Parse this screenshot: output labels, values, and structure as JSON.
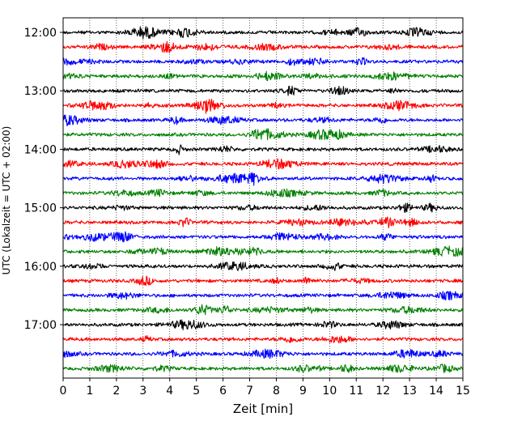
{
  "chart_data": {
    "type": "line",
    "title": "",
    "xlabel": "Zeit  [min]",
    "ylabel": "UTC (Lokalzeit = UTC + 02:00)",
    "xlim": [
      0,
      15
    ],
    "x_ticks": [
      0,
      1,
      2,
      3,
      4,
      5,
      6,
      7,
      8,
      9,
      10,
      11,
      12,
      13,
      14,
      15
    ],
    "y_ticks": [
      "12:00",
      "13:00",
      "14:00",
      "15:00",
      "16:00",
      "17:00"
    ],
    "grid": "vertical dotted",
    "minutes_per_trace": 15,
    "trace_start": "12:00",
    "trace_count": 24,
    "colors": [
      "#000000",
      "#ff0000",
      "#0000ff",
      "#008000"
    ],
    "series": [
      {
        "start": "12:00",
        "color": "#000000"
      },
      {
        "start": "12:15",
        "color": "#ff0000"
      },
      {
        "start": "12:30",
        "color": "#0000ff"
      },
      {
        "start": "12:45",
        "color": "#008000"
      },
      {
        "start": "13:00",
        "color": "#000000"
      },
      {
        "start": "13:15",
        "color": "#ff0000"
      },
      {
        "start": "13:30",
        "color": "#0000ff"
      },
      {
        "start": "13:45",
        "color": "#008000"
      },
      {
        "start": "14:00",
        "color": "#000000"
      },
      {
        "start": "14:15",
        "color": "#ff0000"
      },
      {
        "start": "14:30",
        "color": "#0000ff"
      },
      {
        "start": "14:45",
        "color": "#008000"
      },
      {
        "start": "15:00",
        "color": "#000000"
      },
      {
        "start": "15:15",
        "color": "#ff0000"
      },
      {
        "start": "15:30",
        "color": "#0000ff"
      },
      {
        "start": "15:45",
        "color": "#008000"
      },
      {
        "start": "16:00",
        "color": "#000000"
      },
      {
        "start": "16:15",
        "color": "#ff0000"
      },
      {
        "start": "16:30",
        "color": "#0000ff"
      },
      {
        "start": "16:45",
        "color": "#008000"
      },
      {
        "start": "17:00",
        "color": "#000000"
      },
      {
        "start": "17:15",
        "color": "#ff0000"
      },
      {
        "start": "17:30",
        "color": "#0000ff"
      },
      {
        "start": "17:45",
        "color": "#008000"
      }
    ]
  }
}
